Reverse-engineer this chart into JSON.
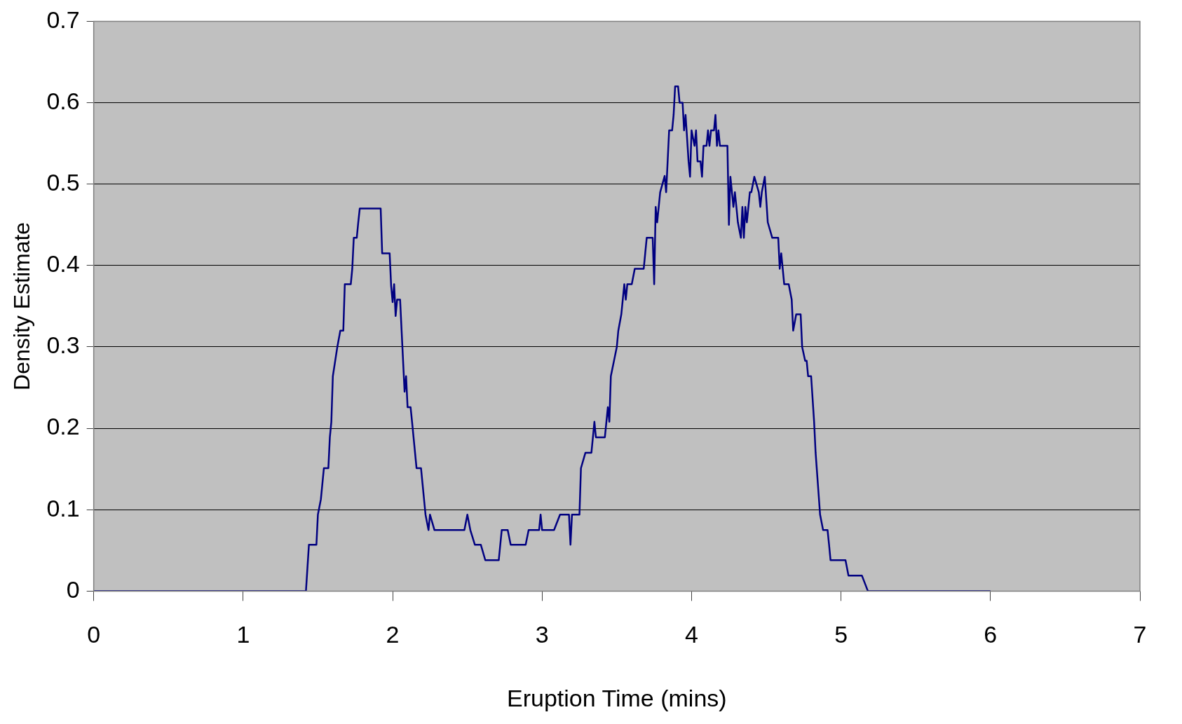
{
  "chart_data": {
    "type": "line",
    "xlabel": "Eruption Time (mins)",
    "ylabel": "Density Estimate",
    "x": [
      0,
      1.42,
      1.44,
      1.49,
      1.5,
      1.52,
      1.54,
      1.57,
      1.58,
      1.59,
      1.6,
      1.63,
      1.65,
      1.67,
      1.68,
      1.72,
      1.73,
      1.74,
      1.76,
      1.77,
      1.78,
      1.92,
      1.93,
      1.98,
      1.99,
      2.0,
      2.01,
      2.02,
      2.03,
      2.05,
      2.06,
      2.08,
      2.09,
      2.1,
      2.12,
      2.13,
      2.16,
      2.19,
      2.2,
      2.22,
      2.24,
      2.25,
      2.28,
      2.48,
      2.5,
      2.52,
      2.55,
      2.59,
      2.62,
      2.71,
      2.73,
      2.77,
      2.79,
      2.89,
      2.91,
      2.98,
      2.99,
      3.0,
      3.08,
      3.12,
      3.18,
      3.19,
      3.2,
      3.25,
      3.26,
      3.29,
      3.33,
      3.35,
      3.36,
      3.42,
      3.44,
      3.45,
      3.46,
      3.5,
      3.51,
      3.53,
      3.55,
      3.56,
      3.57,
      3.6,
      3.62,
      3.68,
      3.69,
      3.7,
      3.74,
      3.75,
      3.76,
      3.77,
      3.79,
      3.82,
      3.83,
      3.85,
      3.87,
      3.88,
      3.89,
      3.91,
      3.92,
      3.94,
      3.95,
      3.96,
      3.98,
      3.99,
      4.0,
      4.02,
      4.03,
      4.04,
      4.06,
      4.07,
      4.08,
      4.1,
      4.11,
      4.12,
      4.13,
      4.15,
      4.16,
      4.17,
      4.18,
      4.19,
      4.24,
      4.25,
      4.26,
      4.28,
      4.29,
      4.3,
      4.31,
      4.33,
      4.34,
      4.35,
      4.36,
      4.37,
      4.39,
      4.4,
      4.42,
      4.45,
      4.46,
      4.47,
      4.49,
      4.51,
      4.54,
      4.58,
      4.59,
      4.6,
      4.62,
      4.65,
      4.67,
      4.68,
      4.7,
      4.73,
      4.74,
      4.76,
      4.77,
      4.78,
      4.8,
      4.82,
      4.83,
      4.86,
      4.88,
      4.91,
      4.92,
      4.93,
      5.03,
      5.05,
      5.14,
      5.18,
      6.0
    ],
    "series": [
      {
        "color": "#000080",
        "values": [
          0,
          0,
          0.057,
          0.057,
          0.094,
          0.113,
          0.151,
          0.151,
          0.189,
          0.208,
          0.264,
          0.3,
          0.32,
          0.32,
          0.377,
          0.377,
          0.396,
          0.434,
          0.434,
          0.453,
          0.47,
          0.47,
          0.415,
          0.415,
          0.375,
          0.355,
          0.377,
          0.338,
          0.358,
          0.358,
          0.32,
          0.245,
          0.264,
          0.226,
          0.226,
          0.208,
          0.151,
          0.151,
          0.132,
          0.094,
          0.075,
          0.094,
          0.075,
          0.075,
          0.094,
          0.075,
          0.057,
          0.057,
          0.038,
          0.038,
          0.075,
          0.075,
          0.057,
          0.057,
          0.075,
          0.075,
          0.094,
          0.075,
          0.075,
          0.094,
          0.094,
          0.057,
          0.094,
          0.094,
          0.151,
          0.17,
          0.17,
          0.208,
          0.189,
          0.189,
          0.226,
          0.208,
          0.264,
          0.3,
          0.32,
          0.34,
          0.377,
          0.358,
          0.377,
          0.377,
          0.396,
          0.396,
          0.415,
          0.434,
          0.434,
          0.377,
          0.472,
          0.453,
          0.49,
          0.51,
          0.49,
          0.566,
          0.566,
          0.585,
          0.62,
          0.62,
          0.6,
          0.6,
          0.566,
          0.585,
          0.528,
          0.509,
          0.566,
          0.547,
          0.566,
          0.528,
          0.528,
          0.509,
          0.547,
          0.547,
          0.566,
          0.547,
          0.566,
          0.566,
          0.585,
          0.547,
          0.566,
          0.547,
          0.547,
          0.45,
          0.509,
          0.472,
          0.49,
          0.472,
          0.453,
          0.434,
          0.472,
          0.434,
          0.472,
          0.453,
          0.49,
          0.49,
          0.509,
          0.49,
          0.472,
          0.49,
          0.509,
          0.453,
          0.434,
          0.434,
          0.396,
          0.415,
          0.377,
          0.377,
          0.358,
          0.32,
          0.34,
          0.34,
          0.3,
          0.283,
          0.283,
          0.264,
          0.264,
          0.208,
          0.17,
          0.094,
          0.075,
          0.075,
          0.057,
          0.038,
          0.038,
          0.019,
          0.019,
          0,
          0
        ]
      }
    ],
    "xlim": [
      0,
      7
    ],
    "ylim": [
      0,
      0.7
    ],
    "xticks": [
      0,
      1,
      2,
      3,
      4,
      5,
      6,
      7
    ],
    "yticks": [
      0,
      0.1,
      0.2,
      0.3,
      0.4,
      0.5,
      0.6,
      0.7
    ],
    "grid": "y",
    "marker": "none",
    "line_style": "solid",
    "legend": false
  }
}
